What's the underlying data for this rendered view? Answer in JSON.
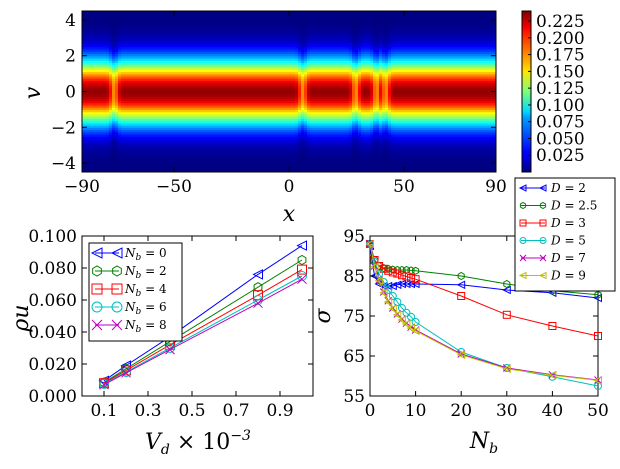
{
  "chart_data": [
    {
      "type": "heatmap",
      "xlabel": "x",
      "ylabel": "v",
      "xlim": [
        -90,
        90
      ],
      "ylim": [
        -4.5,
        4.5
      ],
      "xticks": [
        "−90",
        "−50",
        "0",
        "50",
        "90"
      ],
      "xtick_values": [
        -90,
        -50,
        0,
        50,
        90
      ],
      "yticks": [
        "4",
        "2",
        "0",
        "−2",
        "−4"
      ],
      "ytick_values": [
        4,
        2,
        0,
        -2,
        -4
      ],
      "colorbar": {
        "range": [
          0.0,
          0.24
        ],
        "ticks": [
          "0.225",
          "0.200",
          "0.175",
          "0.150",
          "0.125",
          "0.100",
          "0.075",
          "0.050",
          "0.025"
        ],
        "tick_values": [
          0.225,
          0.2,
          0.175,
          0.15,
          0.125,
          0.1,
          0.075,
          0.05,
          0.025
        ]
      },
      "band": {
        "center": 0,
        "width": 1.25
      },
      "defects_x": [
        -76,
        6,
        29,
        38,
        42
      ],
      "colormap": "jet"
    },
    {
      "type": "line",
      "xlabel": "V_d × 10^−3",
      "ylabel": "ρu",
      "xlim": [
        0.0,
        1.05
      ],
      "ylim": [
        0.0,
        0.1
      ],
      "xticks": [
        "0.1",
        "0.3",
        "0.5",
        "0.7",
        "0.9"
      ],
      "xtick_values": [
        0.1,
        0.3,
        0.5,
        0.7,
        0.9
      ],
      "yticks": [
        "0.100",
        "0.080",
        "0.060",
        "0.040",
        "0.020",
        "0.000"
      ],
      "ytick_values": [
        0.1,
        0.08,
        0.06,
        0.04,
        0.02,
        0.0
      ],
      "legend_position": "top-left",
      "series": [
        {
          "name": "N_b = 0",
          "color": "#0000ff",
          "marker": "tri-left",
          "x": [
            0.1,
            0.2,
            0.4,
            0.8,
            1.0
          ],
          "y": [
            0.0095,
            0.019,
            0.037,
            0.076,
            0.094
          ]
        },
        {
          "name": "N_b = 2",
          "color": "#008000",
          "marker": "hex",
          "x": [
            0.1,
            0.2,
            0.4,
            0.8,
            1.0
          ],
          "y": [
            0.0085,
            0.017,
            0.034,
            0.068,
            0.085
          ]
        },
        {
          "name": "N_b = 4",
          "color": "#ff0000",
          "marker": "square",
          "x": [
            0.1,
            0.2,
            0.4,
            0.8,
            1.0
          ],
          "y": [
            0.008,
            0.016,
            0.032,
            0.063,
            0.079
          ]
        },
        {
          "name": "N_b = 6",
          "color": "#00bfbf",
          "marker": "circle",
          "x": [
            0.1,
            0.2,
            0.4,
            0.8,
            1.0
          ],
          "y": [
            0.0075,
            0.015,
            0.03,
            0.06,
            0.075
          ]
        },
        {
          "name": "N_b = 8",
          "color": "#bf00bf",
          "marker": "x",
          "x": [
            0.1,
            0.2,
            0.4,
            0.8,
            1.0
          ],
          "y": [
            0.007,
            0.0145,
            0.029,
            0.058,
            0.073
          ]
        }
      ]
    },
    {
      "type": "line",
      "xlabel": "N_b",
      "ylabel": "σ",
      "xlim": [
        0,
        50
      ],
      "ylim": [
        55,
        95
      ],
      "xticks": [
        "0",
        "10",
        "20",
        "30",
        "40",
        "50"
      ],
      "xtick_values": [
        0,
        10,
        20,
        30,
        40,
        50
      ],
      "yticks": [
        "95",
        "85",
        "75",
        "65",
        "55"
      ],
      "ytick_values": [
        95,
        85,
        75,
        65,
        55
      ],
      "legend_position": "outside top-right",
      "series": [
        {
          "name": "D = 2",
          "color": "#0000ff",
          "marker": "tri-left",
          "x": [
            0,
            1,
            2,
            3,
            4,
            5,
            6,
            7,
            8,
            9,
            10,
            20,
            30,
            40,
            50
          ],
          "y": [
            92.5,
            85.0,
            83.0,
            82.5,
            82.5,
            82.5,
            82.8,
            83.0,
            83.0,
            83.0,
            83.0,
            82.8,
            81.5,
            80.8,
            79.5
          ]
        },
        {
          "name": "D = 2.5",
          "color": "#008000",
          "marker": "hex",
          "x": [
            0,
            1,
            2,
            3,
            4,
            5,
            6,
            7,
            8,
            9,
            10,
            20,
            30,
            40,
            50
          ],
          "y": [
            93.0,
            89.0,
            87.5,
            87.0,
            86.8,
            86.6,
            86.5,
            86.5,
            86.5,
            86.4,
            86.3,
            85.0,
            83.0,
            81.3,
            80.3
          ]
        },
        {
          "name": "D = 3",
          "color": "#ff0000",
          "marker": "square",
          "x": [
            0,
            1,
            2,
            3,
            4,
            5,
            6,
            7,
            8,
            9,
            10,
            20,
            30,
            40,
            50
          ],
          "y": [
            93.0,
            89.0,
            87.5,
            86.8,
            86.3,
            85.9,
            85.6,
            85.2,
            84.9,
            84.5,
            84.2,
            80.0,
            75.3,
            72.5,
            70.0
          ]
        },
        {
          "name": "D = 5",
          "color": "#00bfbf",
          "marker": "circle",
          "x": [
            0,
            1,
            2,
            3,
            4,
            5,
            6,
            7,
            8,
            9,
            10,
            20,
            30,
            40,
            50
          ],
          "y": [
            93.0,
            88.5,
            85.5,
            83.5,
            81.5,
            80.0,
            78.5,
            77.0,
            75.8,
            74.8,
            73.5,
            66.0,
            62.0,
            59.8,
            57.5
          ]
        },
        {
          "name": "D = 7",
          "color": "#bf00bf",
          "marker": "x",
          "x": [
            0,
            1,
            2,
            3,
            4,
            5,
            6,
            7,
            8,
            9,
            10,
            20,
            30,
            40,
            50
          ],
          "y": [
            93.0,
            87.5,
            84.0,
            81.0,
            78.8,
            77.0,
            75.5,
            74.2,
            73.2,
            72.2,
            71.5,
            65.5,
            62.0,
            60.3,
            59.0
          ]
        },
        {
          "name": "D = 9",
          "color": "#bfbf00",
          "marker": "tri-left",
          "x": [
            0,
            1,
            2,
            3,
            4,
            5,
            6,
            7,
            8,
            9,
            10,
            20,
            30,
            40,
            50
          ],
          "y": [
            93.0,
            87.3,
            83.8,
            80.8,
            78.5,
            76.8,
            75.3,
            74.0,
            73.0,
            72.0,
            71.3,
            65.3,
            61.8,
            60.2,
            58.9
          ]
        }
      ]
    }
  ]
}
